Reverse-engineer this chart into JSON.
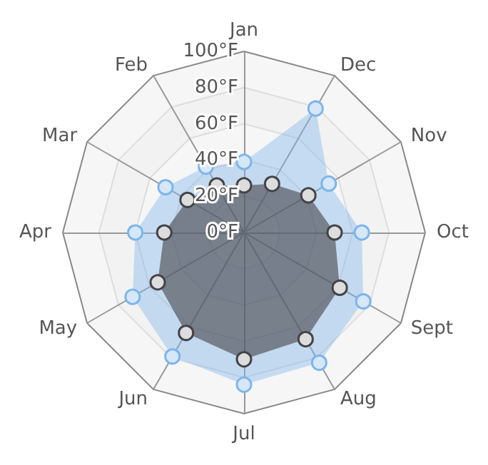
{
  "chart_data": {
    "type": "radar",
    "categories": [
      "Jan",
      "Dec",
      "Nov",
      "Oct",
      "Sept",
      "Aug",
      "Jul",
      "Jun",
      "May",
      "Apr",
      "Mar",
      "Feb"
    ],
    "series": [
      {
        "color": "#7cb5ec",
        "values": [
          39,
          79,
          54,
          65,
          76,
          83,
          84,
          79,
          71,
          60,
          50,
          42
        ]
      },
      {
        "color": "#434348",
        "values": [
          26,
          31,
          41,
          50,
          61,
          68,
          70,
          64,
          55,
          44,
          36,
          30
        ]
      }
    ],
    "ylim": [
      0,
      100
    ],
    "yticks": [
      {
        "value": 0,
        "label": "0°F"
      },
      {
        "value": 20,
        "label": "20°F"
      },
      {
        "value": 40,
        "label": "40°F"
      },
      {
        "value": 60,
        "label": "60°F"
      },
      {
        "value": 80,
        "label": "80°F"
      },
      {
        "value": 100,
        "label": "100°F"
      }
    ],
    "grid": true,
    "marker": "circle"
  }
}
